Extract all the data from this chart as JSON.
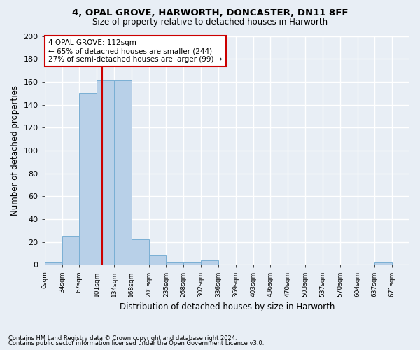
{
  "title1": "4, OPAL GROVE, HARWORTH, DONCASTER, DN11 8FF",
  "title2": "Size of property relative to detached houses in Harworth",
  "xlabel": "Distribution of detached houses by size in Harworth",
  "ylabel": "Number of detached properties",
  "footer1": "Contains HM Land Registry data © Crown copyright and database right 2024.",
  "footer2": "Contains public sector information licensed under the Open Government Licence v3.0.",
  "bin_labels": [
    "0sqm",
    "34sqm",
    "67sqm",
    "101sqm",
    "134sqm",
    "168sqm",
    "201sqm",
    "235sqm",
    "268sqm",
    "302sqm",
    "336sqm",
    "369sqm",
    "403sqm",
    "436sqm",
    "470sqm",
    "503sqm",
    "537sqm",
    "570sqm",
    "604sqm",
    "637sqm",
    "671sqm"
  ],
  "bar_values": [
    2,
    25,
    150,
    161,
    161,
    22,
    8,
    2,
    2,
    4,
    0,
    0,
    0,
    0,
    0,
    0,
    0,
    0,
    0,
    2,
    0
  ],
  "bar_color": "#b8d0e8",
  "bar_edge_color": "#7aafd4",
  "ylim": [
    0,
    200
  ],
  "yticks": [
    0,
    20,
    40,
    60,
    80,
    100,
    120,
    140,
    160,
    180,
    200
  ],
  "annotation_text": "4 OPAL GROVE: 112sqm\n← 65% of detached houses are smaller (244)\n27% of semi-detached houses are larger (99) →",
  "annotation_box_color": "#ffffff",
  "annotation_border_color": "#cc0000",
  "bg_color": "#e8eef5",
  "plot_bg_color": "#e8eef5",
  "grid_color": "#ffffff",
  "vline_color": "#cc0000",
  "vline_x": 3.333
}
